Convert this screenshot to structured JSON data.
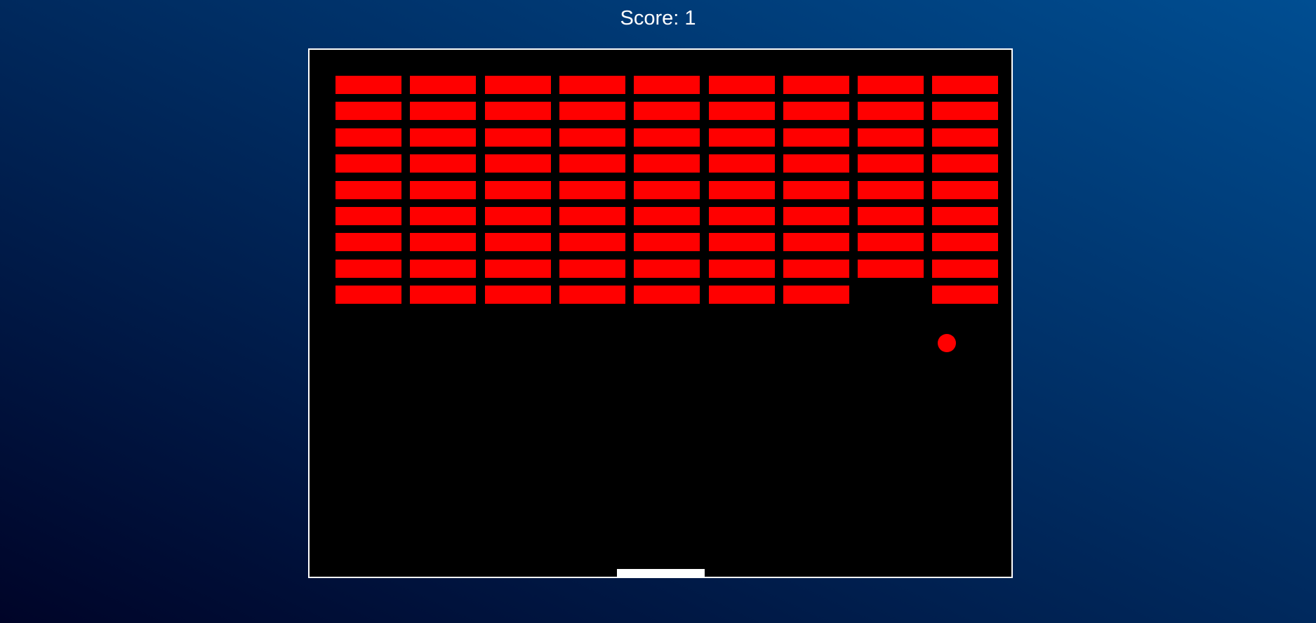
{
  "score_text": "Score: 1",
  "game": {
    "brick_color": "#ff0000",
    "ball_color": "#ff0000",
    "paddle_color": "#ffffff",
    "board_background": "#000000",
    "board_border_color": "#ffffff",
    "bricks_grid": [
      [
        1,
        1,
        1,
        1,
        1,
        1,
        1,
        1,
        1
      ],
      [
        1,
        1,
        1,
        1,
        1,
        1,
        1,
        1,
        1
      ],
      [
        1,
        1,
        1,
        1,
        1,
        1,
        1,
        1,
        1
      ],
      [
        1,
        1,
        1,
        1,
        1,
        1,
        1,
        1,
        1
      ],
      [
        1,
        1,
        1,
        1,
        1,
        1,
        1,
        1,
        1
      ],
      [
        1,
        1,
        1,
        1,
        1,
        1,
        1,
        1,
        1
      ],
      [
        1,
        1,
        1,
        1,
        1,
        1,
        1,
        1,
        1
      ],
      [
        1,
        1,
        1,
        1,
        1,
        1,
        1,
        1,
        1
      ],
      [
        1,
        1,
        1,
        1,
        1,
        1,
        1,
        0,
        1
      ]
    ]
  }
}
